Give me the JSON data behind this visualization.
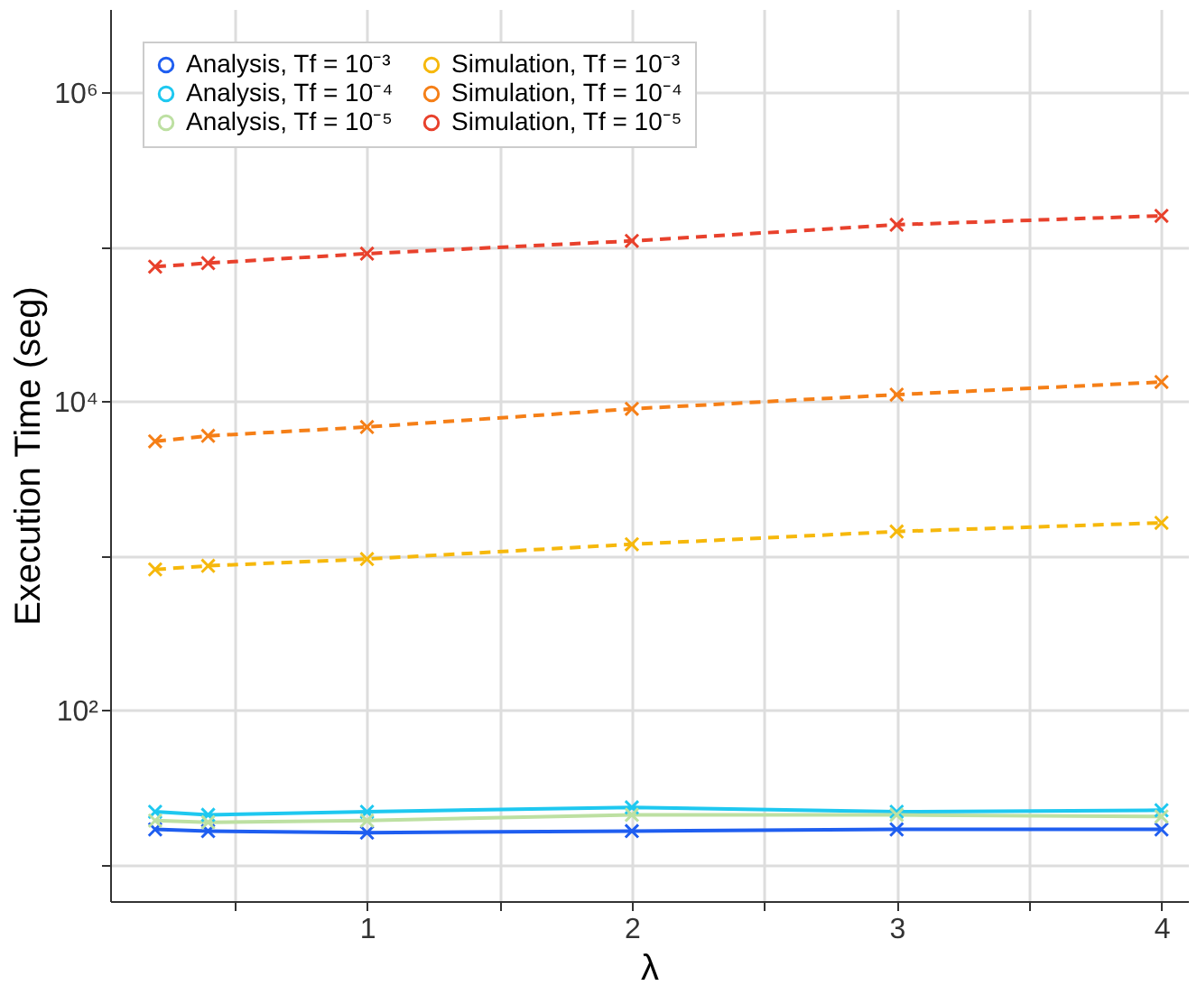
{
  "chart_data": {
    "type": "line",
    "xlabel": "λ",
    "ylabel": "Execution Time (seg)",
    "x": [
      0.2,
      0.4,
      1,
      2,
      3,
      4
    ],
    "series": [
      {
        "name": "Analysis, Tf = 10⁻³",
        "color": "#1f5ef0",
        "line_style": "solid",
        "values": [
          16.9,
          16.5,
          16.1,
          16.5,
          16.9,
          16.9
        ]
      },
      {
        "name": "Analysis, Tf = 10⁻⁴",
        "color": "#1ec8f0",
        "line_style": "solid",
        "values": [
          22,
          21,
          22,
          23.5,
          22,
          22.5
        ]
      },
      {
        "name": "Analysis, Tf = 10⁻⁵",
        "color": "#bde0a2",
        "line_style": "solid",
        "values": [
          19.3,
          18.8,
          19.3,
          21,
          21,
          20.5
        ]
      },
      {
        "name": "Simulation, Tf = 10⁻³",
        "color": "#f6b80c",
        "line_style": "dashed",
        "values": [
          817,
          863,
          955,
          1190,
          1440,
          1640
        ]
      },
      {
        "name": "Simulation, Tf = 10⁻⁴",
        "color": "#f57f17",
        "line_style": "dashed",
        "values": [
          5530,
          6000,
          6850,
          8980,
          11100,
          13400
        ]
      },
      {
        "name": "Simulation, Tf = 10⁻⁵",
        "color": "#e8412c",
        "line_style": "dashed",
        "values": [
          75000,
          79000,
          91000,
          110000,
          140000,
          160000
        ]
      }
    ],
    "log": "y",
    "xlim": [
      0.03,
      4.1
    ],
    "ylim": [
      5.8,
      3500000
    ],
    "xticks": [
      {
        "value": 0.5,
        "label": null
      },
      1,
      {
        "value": 1.5,
        "label": null
      },
      2,
      {
        "value": 2.5,
        "label": null
      },
      3,
      {
        "value": 3.5,
        "label": null
      },
      4
    ],
    "yticks": [
      {
        "value": 10,
        "label": null
      },
      {
        "value": 100,
        "label": "10²"
      },
      {
        "value": 1000,
        "label": null
      },
      {
        "value": 10000,
        "label": "10⁴"
      },
      {
        "value": 100000,
        "label": null
      },
      {
        "value": 1000000,
        "label": "10⁶"
      }
    ],
    "grid": true,
    "legend": "top left",
    "marker": "cross"
  }
}
